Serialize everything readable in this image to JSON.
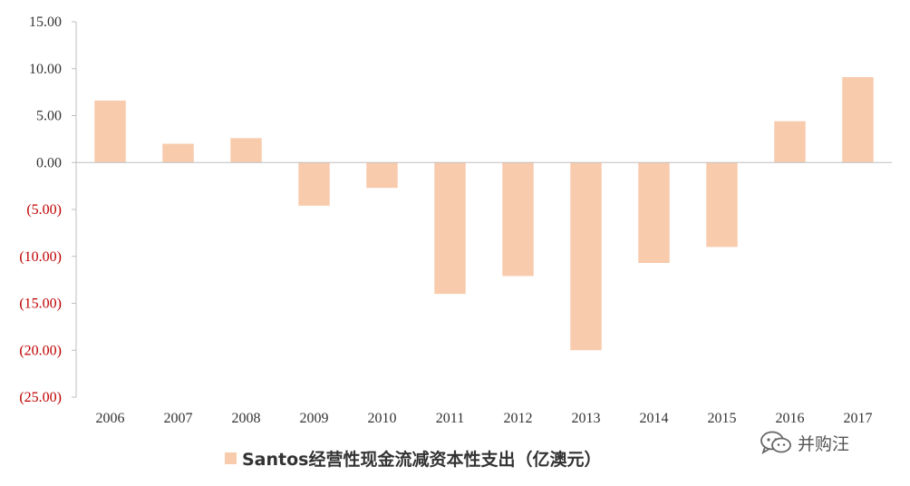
{
  "chart_data": {
    "type": "bar",
    "categories": [
      "2006",
      "2007",
      "2008",
      "2009",
      "2010",
      "2011",
      "2012",
      "2013",
      "2014",
      "2015",
      "2016",
      "2017"
    ],
    "values": [
      6.6,
      2.0,
      2.6,
      -4.6,
      -2.7,
      -14.0,
      -12.1,
      -20.0,
      -10.7,
      -9.0,
      4.4,
      9.1
    ],
    "series": [
      {
        "name": "Santos经营性现金流减资本性支出（亿澳元）",
        "values": [
          6.6,
          2.0,
          2.6,
          -4.6,
          -2.7,
          -14.0,
          -12.1,
          -20.0,
          -10.7,
          -9.0,
          4.4,
          9.1
        ]
      }
    ],
    "y_ticks": [
      {
        "value": 15,
        "label": "15.00"
      },
      {
        "value": 10,
        "label": "10.00"
      },
      {
        "value": 5,
        "label": "5.00"
      },
      {
        "value": 0,
        "label": "0.00"
      },
      {
        "value": -5,
        "label": "(5.00)"
      },
      {
        "value": -10,
        "label": "(10.00)"
      },
      {
        "value": -15,
        "label": "(15.00)"
      },
      {
        "value": -20,
        "label": "(20.00)"
      },
      {
        "value": -25,
        "label": "(25.00)"
      }
    ],
    "ylim": [
      -25,
      15
    ],
    "grid": false,
    "legend_position": "bottom",
    "title": "",
    "xlabel": "",
    "ylabel": "",
    "colors": {
      "bar": "#F8CBAD",
      "axis": "#BFBFBF",
      "positive_tick": "#333333",
      "negative_tick": "#C00000"
    }
  },
  "watermark": {
    "text": "并购汪",
    "icon": "wechat-icon"
  }
}
